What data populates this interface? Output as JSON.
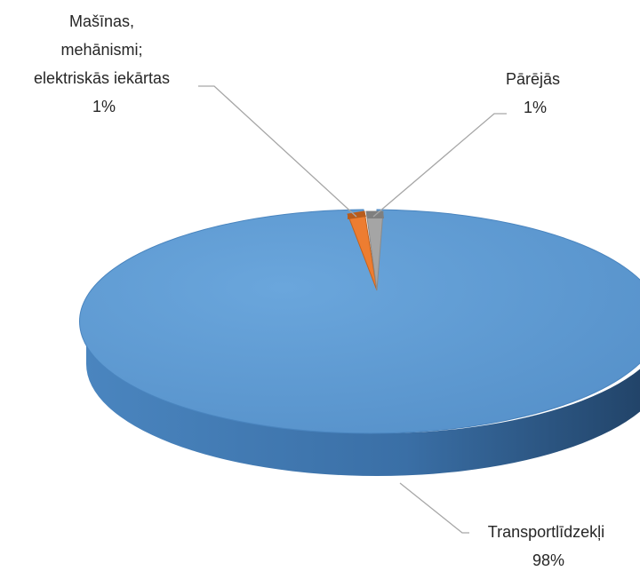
{
  "chart_data": {
    "type": "pie",
    "title": "",
    "style": "3d",
    "colors": {
      "Transportlīdzekļi": "#5b9bd5",
      "Mašīnas, mehānismi; elektriskās iekārtas": "#ed7d31",
      "Pārējās": "#a5a5a5"
    },
    "slices": [
      {
        "label_lines": [
          "Mašīnas,",
          "mehānismi;",
          "elektriskās iekārtas"
        ],
        "label": "Mašīnas, mehānismi; elektriskās iekārtas",
        "value": 1,
        "percent_label": "1%"
      },
      {
        "label_lines": [
          "Pārējās"
        ],
        "label": "Pārējās",
        "value": 1,
        "percent_label": "1%"
      },
      {
        "label_lines": [
          "Transportlīdzekļi"
        ],
        "label": "Transportlīdzekļi",
        "value": 98,
        "percent_label": "98%"
      }
    ],
    "legend": "none",
    "data_labels": "outside with leader lines"
  }
}
